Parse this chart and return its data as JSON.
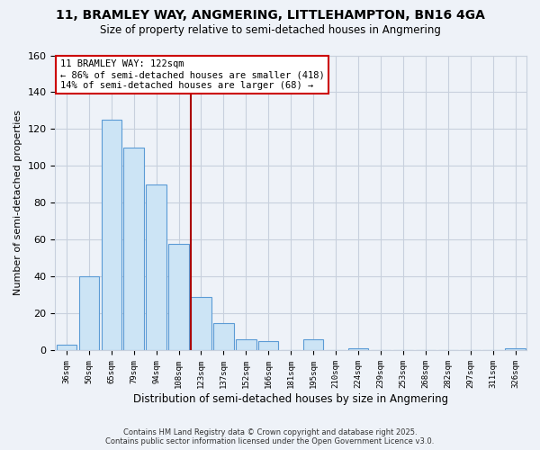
{
  "title": "11, BRAMLEY WAY, ANGMERING, LITTLEHAMPTON, BN16 4GA",
  "subtitle": "Size of property relative to semi-detached houses in Angmering",
  "xlabel": "Distribution of semi-detached houses by size in Angmering",
  "ylabel": "Number of semi-detached properties",
  "bin_labels": [
    "36sqm",
    "50sqm",
    "65sqm",
    "79sqm",
    "94sqm",
    "108sqm",
    "123sqm",
    "137sqm",
    "152sqm",
    "166sqm",
    "181sqm",
    "195sqm",
    "210sqm",
    "224sqm",
    "239sqm",
    "253sqm",
    "268sqm",
    "282sqm",
    "297sqm",
    "311sqm",
    "326sqm"
  ],
  "bar_heights": [
    3,
    40,
    125,
    110,
    90,
    58,
    29,
    15,
    6,
    5,
    0,
    6,
    0,
    1,
    0,
    0,
    0,
    0,
    0,
    0,
    1
  ],
  "bar_color": "#cce4f5",
  "bar_edge_color": "#5b9bd5",
  "vline_color": "#aa0000",
  "annotation_title": "11 BRAMLEY WAY: 122sqm",
  "annotation_line1": "← 86% of semi-detached houses are smaller (418)",
  "annotation_line2": "14% of semi-detached houses are larger (68) →",
  "annotation_box_color": "#ffffff",
  "annotation_box_edge": "#cc0000",
  "ylim": [
    0,
    160
  ],
  "yticks": [
    0,
    20,
    40,
    60,
    80,
    100,
    120,
    140,
    160
  ],
  "footer1": "Contains HM Land Registry data © Crown copyright and database right 2025.",
  "footer2": "Contains public sector information licensed under the Open Government Licence v3.0.",
  "bg_color": "#eef2f8",
  "plot_bg_color": "#eef2f8",
  "grid_color": "#c8d0dd"
}
